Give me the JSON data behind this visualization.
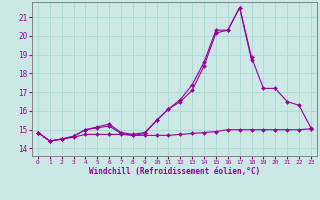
{
  "xlabel": "Windchill (Refroidissement éolien,°C)",
  "bg_color": "#cce8e4",
  "line_color": "#990099",
  "grid_color": "#aad8d4",
  "x_ticks": [
    0,
    1,
    2,
    3,
    4,
    5,
    6,
    7,
    8,
    9,
    10,
    11,
    12,
    13,
    14,
    15,
    16,
    17,
    18,
    19,
    20,
    21,
    22,
    23
  ],
  "y_ticks": [
    14,
    15,
    16,
    17,
    18,
    19,
    20,
    21
  ],
  "ylim": [
    13.6,
    21.8
  ],
  "xlim": [
    -0.5,
    23.5
  ],
  "series": [
    [
      14.85,
      14.4,
      14.5,
      14.6,
      14.75,
      14.75,
      14.75,
      14.75,
      14.7,
      14.7,
      14.7,
      14.7,
      14.75,
      14.8,
      14.85,
      14.9,
      15.0,
      15.0,
      15.0,
      15.0,
      15.0,
      15.0,
      15.0,
      15.05
    ],
    [
      14.85,
      14.4,
      14.5,
      14.65,
      15.0,
      15.1,
      15.2,
      14.8,
      14.7,
      14.8,
      15.5,
      16.1,
      16.6,
      17.4,
      18.6,
      20.3,
      20.3,
      21.5,
      18.7,
      null,
      null,
      null,
      null,
      null
    ],
    [
      14.85,
      14.4,
      14.5,
      14.65,
      15.0,
      15.15,
      15.3,
      14.85,
      14.75,
      14.85,
      15.5,
      16.1,
      16.5,
      17.1,
      18.4,
      20.15,
      20.3,
      21.5,
      18.85,
      17.2,
      17.2,
      16.5,
      16.3,
      15.1
    ]
  ]
}
